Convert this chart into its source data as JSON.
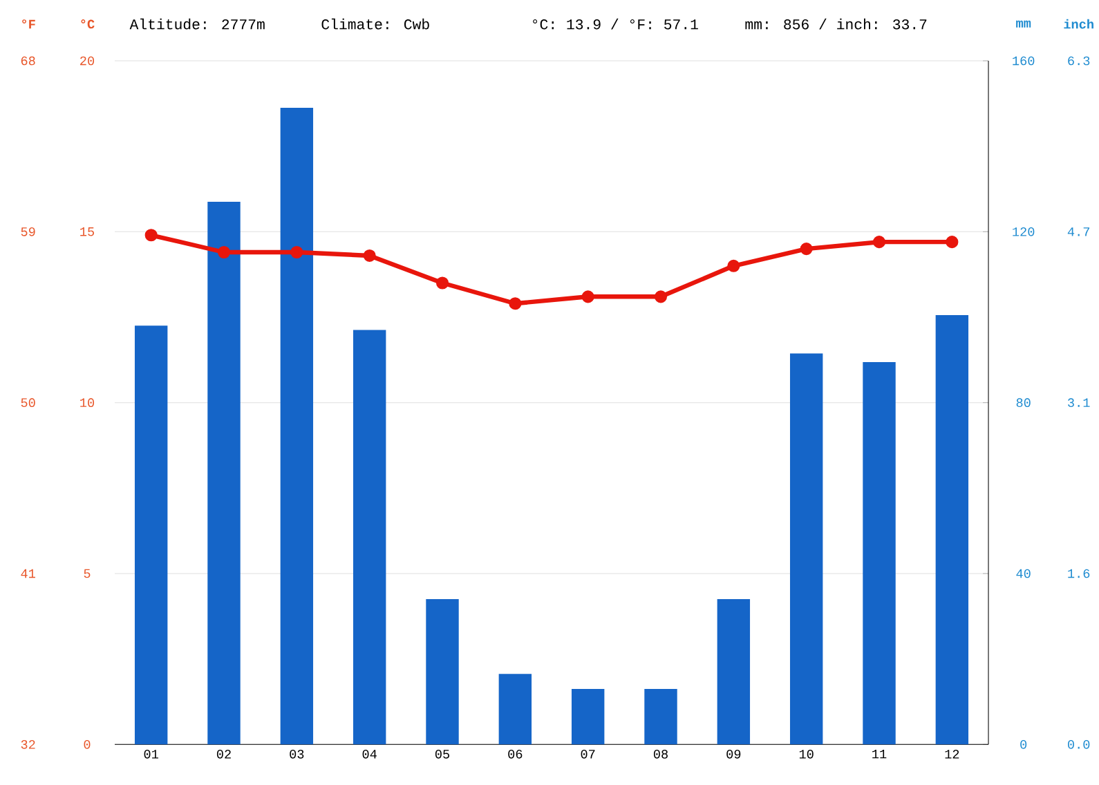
{
  "chart_data": {
    "type": "bar",
    "categories": [
      "01",
      "02",
      "03",
      "04",
      "05",
      "06",
      "07",
      "08",
      "09",
      "10",
      "11",
      "12"
    ],
    "series": [
      {
        "axis": "y2",
        "color": "#1565c8",
        "values": [
          98,
          127,
          149,
          97,
          34,
          16.5,
          13,
          13,
          34,
          91.5,
          89.5,
          100.5
        ]
      },
      {
        "type": "line",
        "color": "#e8160c",
        "marker": "circle",
        "values": [
          14.9,
          14.4,
          14.4,
          14.3,
          13.5,
          12.9,
          13.1,
          13.1,
          14.0,
          14.5,
          14.7,
          14.7
        ]
      }
    ],
    "ylabel": "°C",
    "ylim": [
      0,
      20
    ],
    "yticks": [
      0,
      5,
      10,
      15,
      20
    ],
    "y2label": "mm",
    "y2lim": [
      0,
      160
    ],
    "y2ticks": [
      0,
      40,
      80,
      120,
      160
    ],
    "y3label": "°F",
    "y3lim": [
      32,
      68
    ],
    "y3ticks": [
      32,
      41,
      50,
      59,
      68
    ],
    "grid": "y",
    "annotations": [
      "Altitude: 2777m",
      "Climate: Cwb",
      "°C: 13.9 / °F: 57.1",
      "mm: 856 / inch: 33.7",
      "inch",
      "0.0",
      "1.6",
      "3.1",
      "4.7",
      "6.3"
    ]
  }
}
